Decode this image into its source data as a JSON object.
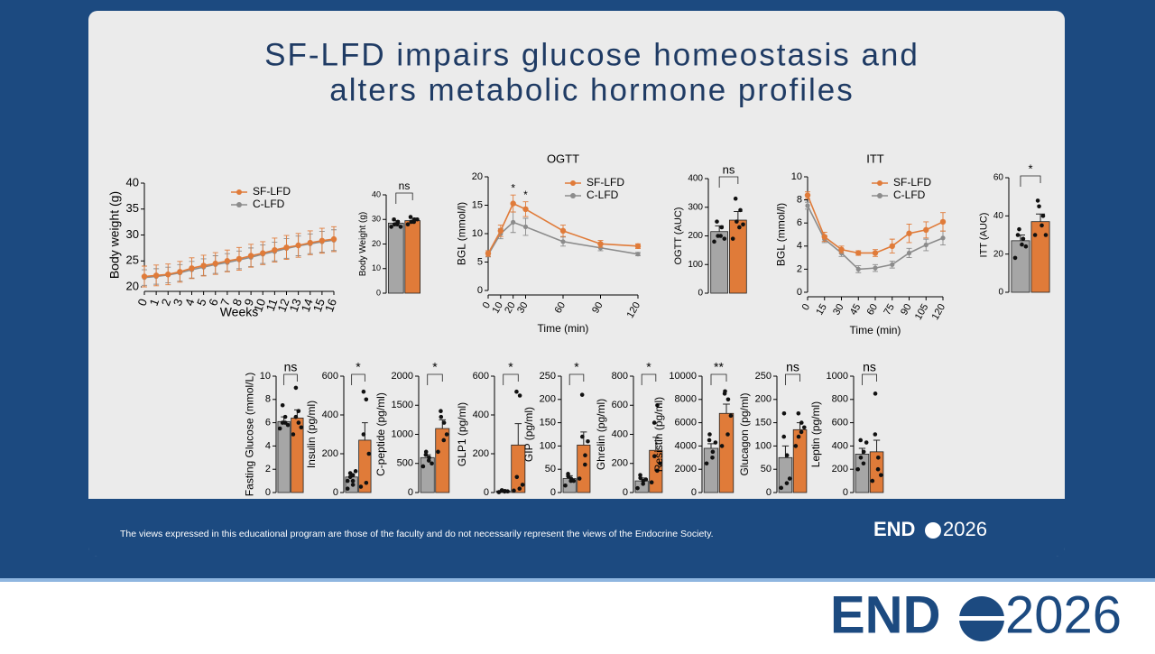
{
  "slide": {
    "title_lines": [
      "SF-LFD impairs glucose homeostasis and",
      "alters metabolic hormone profiles"
    ],
    "disclaimer": "The views expressed in this educational program are those of the faculty and do not necessarily represent the views of the Endocrine Society.",
    "logo_text": "END",
    "logo_year": "2026"
  },
  "chart_data": [
    {
      "type": "line",
      "ylabel": "Body weight (g)",
      "xlabel": "Weeks",
      "x": [
        0,
        1,
        2,
        3,
        4,
        5,
        6,
        7,
        8,
        9,
        10,
        11,
        12,
        13,
        14,
        15,
        16
      ],
      "xlim": [
        0,
        16
      ],
      "xticks": [
        0,
        1,
        2,
        3,
        4,
        5,
        6,
        7,
        8,
        9,
        10,
        11,
        12,
        13,
        14,
        15,
        16
      ],
      "ylim": [
        20,
        40
      ],
      "yticks": [
        20,
        25,
        30,
        35,
        40
      ],
      "series": [
        {
          "name": "SF-LFD",
          "color": "#e07b39",
          "values": [
            22,
            22.2,
            22.4,
            22.9,
            23.6,
            24.1,
            24.5,
            25,
            25.4,
            26,
            26.5,
            27.1,
            27.6,
            28,
            28.5,
            28.9,
            29.2
          ],
          "errors": [
            2,
            2,
            2,
            2,
            2,
            2,
            2.1,
            2.1,
            2.2,
            2.2,
            2.2,
            2.3,
            2.3,
            2.3,
            2.3,
            2.4,
            2.4
          ]
        },
        {
          "name": "C-LFD",
          "color": "#8c8c8c",
          "values": [
            21.8,
            22,
            22.3,
            22.7,
            23.3,
            23.8,
            24.3,
            24.7,
            25.2,
            25.7,
            26.3,
            26.8,
            27.4,
            27.9,
            28.3,
            28.7,
            29
          ],
          "errors": [
            1.5,
            1.5,
            1.5,
            1.6,
            1.6,
            1.6,
            1.7,
            1.7,
            1.7,
            1.8,
            1.8,
            1.8,
            1.9,
            1.9,
            1.9,
            2,
            2
          ]
        }
      ]
    },
    {
      "type": "bar",
      "ylabel": "Body Weight (g)",
      "categories": [
        null,
        null
      ],
      "values": [
        28.5,
        29.5
      ],
      "errors": [
        1,
        1
      ],
      "colors": [
        "#a6a6a6",
        "#e07b39"
      ],
      "points": [
        [
          27,
          28,
          29,
          30,
          28,
          27
        ],
        [
          28,
          29,
          30,
          31,
          29,
          30
        ]
      ],
      "significance": "ns",
      "ylim": [
        0,
        40
      ],
      "yticks": [
        0,
        10,
        20,
        30,
        40
      ]
    },
    {
      "type": "line",
      "title": "OGTT",
      "ylabel": "BGL (mmol/l)",
      "xlabel": "Time (min)",
      "x": [
        0,
        10,
        20,
        30,
        60,
        90,
        120
      ],
      "xlim": [
        0,
        120
      ],
      "xticks": [
        0,
        10,
        20,
        30,
        60,
        90,
        120
      ],
      "ylim": [
        0,
        20
      ],
      "yticks": [
        0,
        5,
        10,
        15,
        20
      ],
      "series": [
        {
          "name": "SF-LFD",
          "color": "#e07b39",
          "values": [
            6.5,
            10.5,
            15.3,
            14.3,
            10.5,
            8.2,
            7.8
          ],
          "errors": [
            0.5,
            1,
            1.5,
            1.3,
            1,
            0.6,
            0.4
          ]
        },
        {
          "name": "C-LFD",
          "color": "#8c8c8c",
          "values": [
            6.3,
            10,
            12,
            11.2,
            8.6,
            7.5,
            6.4
          ],
          "errors": [
            0.4,
            0.9,
            1.8,
            1.5,
            0.8,
            0.5,
            0.3
          ]
        }
      ],
      "annotations": [
        {
          "x": 20,
          "text": "*"
        },
        {
          "x": 30,
          "text": "*"
        }
      ]
    },
    {
      "type": "bar",
      "ylabel": "OGTT (AUC)",
      "categories": [
        null,
        null
      ],
      "values": [
        215,
        255
      ],
      "errors": [
        20,
        30
      ],
      "colors": [
        "#a6a6a6",
        "#e07b39"
      ],
      "points": [
        [
          180,
          200,
          230,
          250,
          200,
          190
        ],
        [
          190,
          230,
          290,
          330,
          250,
          240
        ]
      ],
      "significance": "ns",
      "ylim": [
        0,
        400
      ],
      "yticks": [
        0,
        100,
        200,
        300,
        400
      ]
    },
    {
      "type": "line",
      "title": "ITT",
      "ylabel": "BGL (mmol/l)",
      "xlabel": "Time (min)",
      "x": [
        0,
        15,
        30,
        45,
        60,
        75,
        90,
        105,
        120
      ],
      "xlim": [
        0,
        120
      ],
      "xticks": [
        0,
        15,
        30,
        45,
        60,
        75,
        90,
        105,
        120
      ],
      "ylim": [
        0,
        10
      ],
      "yticks": [
        0,
        2,
        4,
        6,
        8,
        10
      ],
      "series": [
        {
          "name": "SF-LFD",
          "color": "#e07b39",
          "values": [
            8.4,
            4.8,
            3.7,
            3.4,
            3.4,
            4,
            5.1,
            5.4,
            6.1
          ],
          "errors": [
            0.3,
            0.4,
            0.3,
            0.2,
            0.3,
            0.6,
            0.8,
            0.7,
            0.8
          ]
        },
        {
          "name": "C-LFD",
          "color": "#8c8c8c",
          "values": [
            7.5,
            4.6,
            3.4,
            2,
            2.1,
            2.4,
            3.4,
            4.1,
            4.7
          ],
          "errors": [
            0.3,
            0.3,
            0.3,
            0.3,
            0.3,
            0.3,
            0.4,
            0.5,
            0.6
          ]
        }
      ]
    },
    {
      "type": "bar",
      "ylabel": "ITT (AUC)",
      "categories": [
        null,
        null
      ],
      "values": [
        27,
        37
      ],
      "errors": [
        3,
        4
      ],
      "colors": [
        "#a6a6a6",
        "#e07b39"
      ],
      "points": [
        [
          18,
          25,
          28,
          30,
          33,
          24
        ],
        [
          30,
          35,
          40,
          48,
          45,
          30
        ]
      ],
      "significance": "*",
      "ylim": [
        0,
        60
      ],
      "yticks": [
        0,
        20,
        40,
        60
      ]
    },
    {
      "type": "bar",
      "ylabel": "Fasting Glucose (mmol/L)",
      "categories": [
        null,
        null
      ],
      "values": [
        6.1,
        6.4
      ],
      "errors": [
        0.4,
        0.7
      ],
      "colors": [
        "#a6a6a6",
        "#e07b39"
      ],
      "points": [
        [
          5.5,
          6,
          6.5,
          7.5,
          6,
          5.8
        ],
        [
          5,
          6,
          7,
          9,
          6.5,
          5.6
        ]
      ],
      "significance": "ns",
      "ylim": [
        0,
        10
      ],
      "yticks": [
        0,
        2,
        4,
        6,
        8,
        10
      ]
    },
    {
      "type": "bar",
      "ylabel": "Insulin (pg/ml)",
      "categories": [
        null,
        null
      ],
      "values": [
        80,
        270
      ],
      "errors": [
        15,
        90
      ],
      "colors": [
        "#a6a6a6",
        "#e07b39"
      ],
      "points": [
        [
          20,
          40,
          60,
          80,
          100,
          110,
          60,
          90
        ],
        [
          30,
          50,
          480,
          520,
          300,
          200
        ]
      ],
      "significance": "*",
      "ylim": [
        0,
        600
      ],
      "yticks": [
        0,
        200,
        400,
        600
      ]
    },
    {
      "type": "bar",
      "ylabel": "C-peptide (pg/ml)",
      "categories": [
        null,
        null
      ],
      "values": [
        600,
        1100
      ],
      "errors": [
        50,
        150
      ],
      "colors": [
        "#a6a6a6",
        "#e07b39"
      ],
      "points": [
        [
          450,
          550,
          600,
          650,
          700,
          500
        ],
        [
          700,
          900,
          1200,
          1400,
          1300,
          1000
        ]
      ],
      "significance": "*",
      "ylim": [
        0,
        2000
      ],
      "yticks": [
        0,
        500,
        1000,
        1500,
        2000
      ]
    },
    {
      "type": "bar",
      "ylabel": "GLP1 (pg/ml)",
      "categories": [
        null,
        null
      ],
      "values": [
        8,
        245
      ],
      "errors": [
        2,
        110
      ],
      "colors": [
        "#a6a6a6",
        "#e07b39"
      ],
      "points": [
        [
          2,
          5,
          8,
          10,
          12,
          6
        ],
        [
          10,
          20,
          500,
          520,
          80,
          40
        ]
      ],
      "significance": "*",
      "ylim": [
        0,
        600
      ],
      "yticks": [
        0,
        200,
        400,
        600
      ]
    },
    {
      "type": "bar",
      "ylabel": "GIP (pg/ml)",
      "categories": [
        null,
        null
      ],
      "values": [
        30,
        102
      ],
      "errors": [
        6,
        28
      ],
      "colors": [
        "#a6a6a6",
        "#e07b39"
      ],
      "points": [
        [
          15,
          25,
          30,
          40,
          35,
          25
        ],
        [
          30,
          60,
          80,
          210,
          120,
          110
        ]
      ],
      "significance": "*",
      "ylim": [
        0,
        250
      ],
      "yticks": [
        0,
        50,
        100,
        150,
        200,
        250
      ]
    },
    {
      "type": "bar",
      "ylabel": "Ghrelin (pg/ml)",
      "categories": [
        null,
        null
      ],
      "values": [
        80,
        290
      ],
      "errors": [
        20,
        90
      ],
      "colors": [
        "#a6a6a6",
        "#e07b39"
      ],
      "points": [
        [
          30,
          60,
          80,
          120,
          100,
          90
        ],
        [
          70,
          150,
          600,
          480,
          250,
          200
        ]
      ],
      "significance": "*",
      "ylim": [
        0,
        800
      ],
      "yticks": [
        0,
        200,
        400,
        600,
        800
      ]
    },
    {
      "type": "bar",
      "ylabel": "Resistin (pg/ml)",
      "categories": [
        null,
        null
      ],
      "values": [
        3800,
        6800
      ],
      "errors": [
        400,
        800
      ],
      "colors": [
        "#a6a6a6",
        "#e07b39"
      ],
      "points": [
        [
          2500,
          3000,
          3500,
          4500,
          5000,
          4300
        ],
        [
          4000,
          5000,
          8000,
          8500,
          8700,
          6600
        ]
      ],
      "significance": "**",
      "ylim": [
        0,
        10000
      ],
      "yticks": [
        0,
        2000,
        4000,
        6000,
        8000,
        10000
      ]
    },
    {
      "type": "bar",
      "ylabel": "Glucagon (pg/ml)",
      "categories": [
        null,
        null
      ],
      "values": [
        75,
        135
      ],
      "errors": [
        25,
        15
      ],
      "colors": [
        "#a6a6a6",
        "#e07b39"
      ],
      "points": [
        [
          10,
          20,
          80,
          120,
          170,
          30
        ],
        [
          100,
          130,
          150,
          170,
          120,
          140
        ]
      ],
      "significance": "ns",
      "ylim": [
        0,
        250
      ],
      "yticks": [
        0,
        50,
        100,
        150,
        200,
        250
      ]
    },
    {
      "type": "bar",
      "ylabel": "Leptin (pg/ml)",
      "categories": [
        null,
        null
      ],
      "values": [
        330,
        350
      ],
      "errors": [
        50,
        100
      ],
      "colors": [
        "#a6a6a6",
        "#e07b39"
      ],
      "points": [
        [
          200,
          250,
          350,
          450,
          300,
          430
        ],
        [
          100,
          200,
          300,
          500,
          850,
          150
        ]
      ],
      "significance": "ns",
      "ylim": [
        0,
        1000
      ],
      "yticks": [
        0,
        200,
        400,
        600,
        800,
        1000
      ]
    }
  ]
}
